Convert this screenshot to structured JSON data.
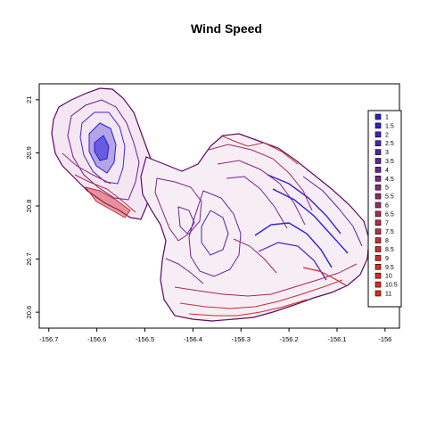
{
  "title": "Wind Speed",
  "chart_data": {
    "type": "contour-map",
    "title": "Wind Speed",
    "xlabel": "",
    "ylabel": "",
    "xlim": [
      -156.72,
      -155.97
    ],
    "ylim": [
      20.57,
      21.03
    ],
    "x_ticks": [
      "-156.7",
      "-156.6",
      "-156.5",
      "-156.4",
      "-156.3",
      "-156.2",
      "-156.1",
      "-156"
    ],
    "y_ticks": [
      "20.6",
      "20.7",
      "20.8",
      "20.9",
      "21"
    ],
    "legend": {
      "placement": "right",
      "levels": [
        "1",
        "1.5",
        "2",
        "2.5",
        "3",
        "3.5",
        "4",
        "4.5",
        "5",
        "5.5",
        "6",
        "6.5",
        "7",
        "7.5",
        "8",
        "8.5",
        "9",
        "9.5",
        "10",
        "10.5",
        "11"
      ],
      "colors": [
        "#2a1fd8",
        "#3520cc",
        "#4121c0",
        "#4d22b4",
        "#5923a8",
        "#65249c",
        "#712590",
        "#7d2684",
        "#892778",
        "#95286c",
        "#a12960",
        "#ad2a54",
        "#b92b48",
        "#c52c3c",
        "#d12d30",
        "#d42c2c",
        "#d82b28",
        "#dc2a24",
        "#e02920",
        "#e4281c",
        "#e82718"
      ]
    }
  }
}
